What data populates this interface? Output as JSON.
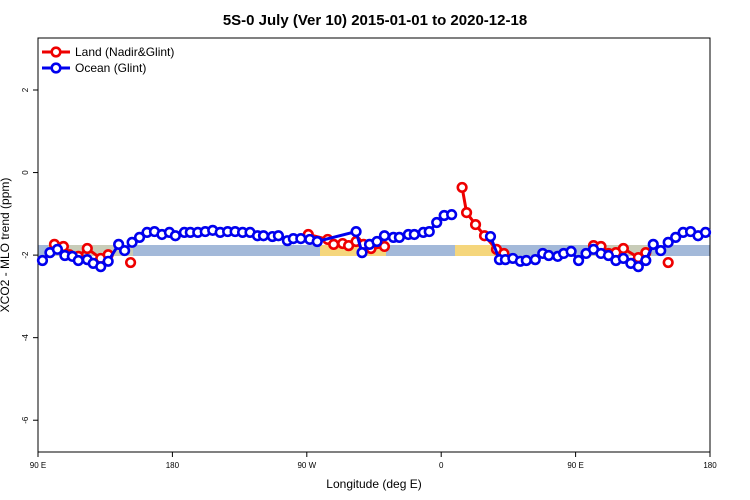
{
  "chart_data": {
    "type": "line",
    "title": "5S-0 July (Ver 10)   2015-01-01 to 2020-12-18",
    "x_label": "Longitude (deg E)",
    "y_label": "XCO2 - MLO trend (ppm)",
    "xlim": [
      90,
      540
    ],
    "xticks": [
      {
        "value": 90,
        "label": "90 E"
      },
      180,
      {
        "value": 270,
        "label": "90 W"
      },
      {
        "value": 360,
        "label": "0"
      },
      {
        "value": 450,
        "label": "90 E"
      },
      {
        "value": 540,
        "label": "180"
      }
    ],
    "ylim": [
      -6.77,
      3.26
    ],
    "yticks": [
      2,
      0,
      -2,
      -4,
      -6
    ],
    "legend": "top-left",
    "series": [
      {
        "name": "Land (Nadir&Glint)",
        "color": "#ee0000",
        "x": [
          101,
          107,
          111,
          117,
          123,
          132,
          137,
          null,
          152,
          null,
          271,
          284,
          288,
          294,
          298,
          303,
          308,
          313,
          322,
          null,
          374,
          377,
          383,
          389,
          397,
          402,
          null,
          462,
          467,
          472,
          477,
          482,
          492,
          497,
          null,
          512
        ],
        "values": [
          -1.74,
          -1.79,
          -1.99,
          -2.03,
          -1.84,
          -2.08,
          -1.99,
          null,
          -2.18,
          null,
          -1.5,
          -1.62,
          -1.74,
          -1.72,
          -1.77,
          -1.67,
          -1.74,
          -1.84,
          -1.79,
          null,
          -0.36,
          -0.97,
          -1.26,
          -1.53,
          -1.86,
          -1.96,
          null,
          -1.77,
          -1.79,
          -1.96,
          -1.94,
          -1.84,
          -2.06,
          -1.94,
          null,
          -2.18
        ]
      },
      {
        "name": "Ocean (Glint)",
        "color": "#0000ee",
        "x": [
          93,
          98,
          103,
          108,
          113,
          117,
          123,
          127,
          132,
          137,
          144,
          148,
          153,
          158,
          163,
          168,
          173,
          178,
          182,
          188,
          192,
          197,
          202,
          207,
          212,
          217,
          222,
          227,
          232,
          237,
          241,
          247,
          251,
          257,
          261,
          266,
          272,
          277,
          303,
          307,
          312,
          317,
          322,
          328,
          332,
          338,
          342,
          348,
          352,
          357,
          362,
          367,
          null,
          393,
          399,
          403,
          408,
          413,
          417,
          423,
          428,
          432,
          438,
          442,
          447,
          452,
          457,
          462,
          467,
          472,
          477,
          482,
          487,
          492,
          497,
          502,
          507,
          512,
          517,
          522,
          527,
          532,
          537
        ],
        "values": [
          -2.13,
          -1.94,
          -1.86,
          -2.01,
          -2.03,
          -2.13,
          -2.11,
          -2.2,
          -2.28,
          -2.15,
          -1.74,
          -1.89,
          -1.69,
          -1.57,
          -1.45,
          -1.43,
          -1.5,
          -1.45,
          -1.53,
          -1.45,
          -1.45,
          -1.45,
          -1.43,
          -1.4,
          -1.45,
          -1.43,
          -1.43,
          -1.45,
          -1.45,
          -1.53,
          -1.53,
          -1.55,
          -1.53,
          -1.65,
          -1.6,
          -1.6,
          -1.62,
          -1.67,
          -1.43,
          -1.94,
          -1.74,
          -1.67,
          -1.53,
          -1.57,
          -1.57,
          -1.5,
          -1.5,
          -1.45,
          -1.43,
          -1.21,
          -1.04,
          -1.02,
          null,
          -1.55,
          -2.11,
          -2.11,
          -2.08,
          -2.15,
          -2.13,
          -2.11,
          -1.96,
          -2.01,
          -2.03,
          -1.96,
          -1.91,
          -2.13,
          -1.96,
          -1.86,
          -1.96,
          -2.01,
          -2.13,
          -2.08,
          -2.2,
          -2.28,
          -2.13,
          -1.74,
          -1.89,
          -1.69,
          -1.57,
          -1.45,
          -1.43,
          -1.53,
          -1.45
        ]
      }
    ]
  }
}
